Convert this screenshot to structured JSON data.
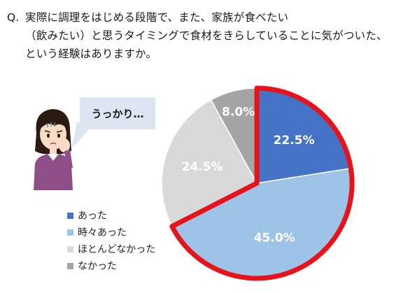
{
  "question": {
    "prefix": "Q.",
    "lines": [
      "実際に調理をはじめる段階で、また、家族が食べたい",
      "（飲みたい）と思うタイミングで食材をきらしていることに気がついた、",
      "という経験はありますか。"
    ]
  },
  "bubble": {
    "text": "うっかり…"
  },
  "illustration": {
    "icon": "worried-woman-icon"
  },
  "colors": {
    "highlight_outline": "#e8131a",
    "bubble_bg": "#dde5f2"
  },
  "chart_data": {
    "type": "pie",
    "title": "",
    "start_angle_deg": 0,
    "direction": "clockwise",
    "highlighted": [
      "あった",
      "時々あった"
    ],
    "slices": [
      {
        "label": "あった",
        "value": 22.5,
        "display": "22.5%",
        "color": "#4472c4"
      },
      {
        "label": "時々あった",
        "value": 45.0,
        "display": "45.0%",
        "color": "#9dc3e6"
      },
      {
        "label": "ほとんどなかった",
        "value": 24.5,
        "display": "24.5%",
        "color": "#d9d9d9"
      },
      {
        "label": "なかった",
        "value": 8.0,
        "display": "8.0%",
        "color": "#a5a5a5"
      }
    ],
    "legend": {
      "position": "left-bottom",
      "entries": [
        "あった",
        "時々あった",
        "ほとんどなかった",
        "なかった"
      ]
    }
  }
}
